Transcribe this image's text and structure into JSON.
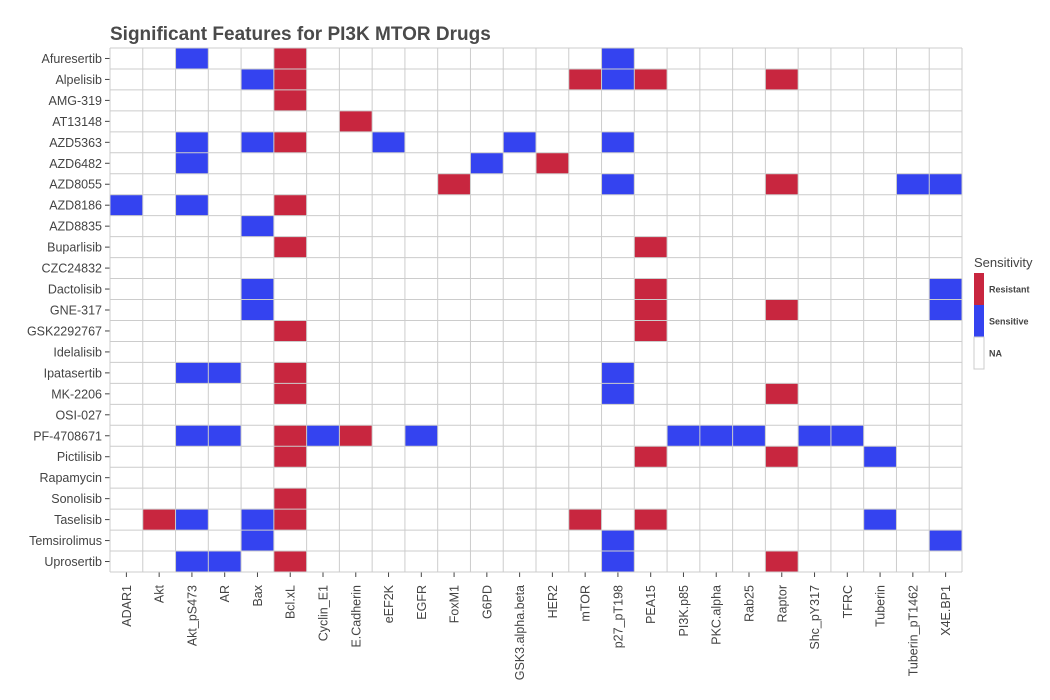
{
  "chart_data": {
    "type": "heatmap",
    "title": "Significant Features for PI3K MTOR Drugs",
    "xlabel": "",
    "ylabel": "",
    "columns": [
      "ADAR1",
      "Akt",
      "Akt_pS473",
      "AR",
      "Bax",
      "Bcl.xL",
      "Cyclin_E1",
      "E.Cadherin",
      "eEF2K",
      "EGFR",
      "FoxM1",
      "G6PD",
      "GSK3.alpha.beta",
      "HER2",
      "mTOR",
      "p27_pT198",
      "PEA15",
      "PI3K.p85",
      "PKC.alpha",
      "Rab25",
      "Raptor",
      "Shc_pY317",
      "TFRC",
      "Tuberin",
      "Tuberin_pT1462",
      "X4E.BP1"
    ],
    "rows": [
      "Afuresertib",
      "Alpelisib",
      "AMG-319",
      "AT13148",
      "AZD5363",
      "AZD6482",
      "AZD8055",
      "AZD8186",
      "AZD8835",
      "Buparlisib",
      "CZC24832",
      "Dactolisib",
      "GNE-317",
      "GSK2292767",
      "Idelalisib",
      "Ipatasertib",
      "MK-2206",
      "OSI-027",
      "PF-4708671",
      "Pictilisib",
      "Rapamycin",
      "Sonolisib",
      "Taselisib",
      "Temsirolimus",
      "Uprosertib"
    ],
    "cells": {
      "Afuresertib": {
        "Akt_pS473": "Sensitive",
        "Bcl.xL": "Resistant",
        "p27_pT198": "Sensitive"
      },
      "Alpelisib": {
        "Bax": "Sensitive",
        "Bcl.xL": "Resistant",
        "mTOR": "Resistant",
        "p27_pT198": "Sensitive",
        "PEA15": "Resistant",
        "Raptor": "Resistant"
      },
      "AMG-319": {
        "Bcl.xL": "Resistant"
      },
      "AT13148": {
        "E.Cadherin": "Resistant"
      },
      "AZD5363": {
        "Akt_pS473": "Sensitive",
        "Bax": "Sensitive",
        "Bcl.xL": "Resistant",
        "eEF2K": "Sensitive",
        "GSK3.alpha.beta": "Sensitive",
        "p27_pT198": "Sensitive"
      },
      "AZD6482": {
        "Akt_pS473": "Sensitive",
        "G6PD": "Sensitive",
        "HER2": "Resistant"
      },
      "AZD8055": {
        "FoxM1": "Resistant",
        "p27_pT198": "Sensitive",
        "Raptor": "Resistant",
        "Tuberin_pT1462": "Sensitive",
        "X4E.BP1": "Sensitive"
      },
      "AZD8186": {
        "ADAR1": "Sensitive",
        "Akt_pS473": "Sensitive",
        "Bcl.xL": "Resistant"
      },
      "AZD8835": {
        "Bax": "Sensitive"
      },
      "Buparlisib": {
        "Bcl.xL": "Resistant",
        "PEA15": "Resistant"
      },
      "CZC24832": {},
      "Dactolisib": {
        "Bax": "Sensitive",
        "PEA15": "Resistant",
        "X4E.BP1": "Sensitive"
      },
      "GNE-317": {
        "Bax": "Sensitive",
        "PEA15": "Resistant",
        "Raptor": "Resistant",
        "X4E.BP1": "Sensitive"
      },
      "GSK2292767": {
        "Bcl.xL": "Resistant",
        "PEA15": "Resistant"
      },
      "Idelalisib": {},
      "Ipatasertib": {
        "Akt_pS473": "Sensitive",
        "AR": "Sensitive",
        "Bcl.xL": "Resistant",
        "p27_pT198": "Sensitive"
      },
      "MK-2206": {
        "Bcl.xL": "Resistant",
        "p27_pT198": "Sensitive",
        "Raptor": "Resistant"
      },
      "OSI-027": {},
      "PF-4708671": {
        "Akt_pS473": "Sensitive",
        "AR": "Sensitive",
        "Bcl.xL": "Resistant",
        "Cyclin_E1": "Sensitive",
        "E.Cadherin": "Resistant",
        "EGFR": "Sensitive",
        "PI3K.p85": "Sensitive",
        "PKC.alpha": "Sensitive",
        "Rab25": "Sensitive",
        "Shc_pY317": "Sensitive",
        "TFRC": "Sensitive"
      },
      "Pictilisib": {
        "Bcl.xL": "Resistant",
        "PEA15": "Resistant",
        "Raptor": "Resistant",
        "Tuberin": "Sensitive"
      },
      "Rapamycin": {},
      "Sonolisib": {
        "Bcl.xL": "Resistant"
      },
      "Taselisib": {
        "Akt": "Resistant",
        "Akt_pS473": "Sensitive",
        "Bax": "Sensitive",
        "Bcl.xL": "Resistant",
        "mTOR": "Resistant",
        "PEA15": "Resistant",
        "Tuberin": "Sensitive"
      },
      "Temsirolimus": {
        "Bax": "Sensitive",
        "p27_pT198": "Sensitive",
        "X4E.BP1": "Sensitive"
      },
      "Uprosertib": {
        "Akt_pS473": "Sensitive",
        "AR": "Sensitive",
        "Bcl.xL": "Resistant",
        "p27_pT198": "Sensitive",
        "Raptor": "Resistant"
      }
    },
    "legend": {
      "title": "Sensitivity",
      "placement": "right",
      "entries": [
        {
          "label": "Resistant",
          "color": "#c8263f"
        },
        {
          "label": "Sensitive",
          "color": "#3443f0"
        },
        {
          "label": "NA",
          "color": "#ffffff"
        }
      ]
    },
    "grid": true
  }
}
